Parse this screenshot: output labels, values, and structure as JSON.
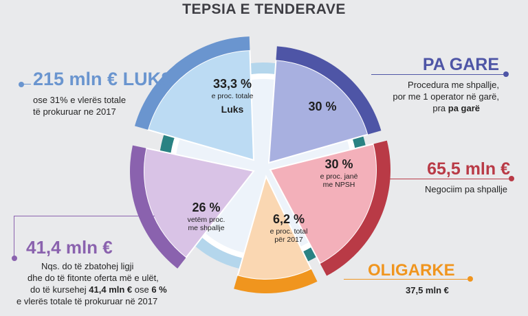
{
  "title": "TEPSIA E TENDERAVE",
  "colors": {
    "luks": "#6a95cf",
    "pa_gare": "#4e55a6",
    "negociim": "#b93a46",
    "oligarke": "#f0951e",
    "shpallje": "#8a62ae",
    "teal_ring": "#2a8283",
    "lightblue_ring": "#b4d6ec"
  },
  "chart_data": {
    "type": "pie",
    "slices": [
      {
        "key": "luks",
        "value_label": "33,3 %",
        "sub_label": "e proc. totale",
        "extra_label": "Luks"
      },
      {
        "key": "pa_gare",
        "value_label": "30 %",
        "sub_label": "",
        "extra_label": ""
      },
      {
        "key": "negociim",
        "value_label": "30 %",
        "sub_label": "e proc. janë\nme NPSH",
        "extra_label": ""
      },
      {
        "key": "oligarke",
        "value_label": "6,2 %",
        "sub_label": "e proc. total\npër 2017",
        "extra_label": ""
      },
      {
        "key": "shpallje",
        "value_label": "26 %",
        "sub_label": "vetëm proc.\nme shpallje",
        "extra_label": ""
      }
    ]
  },
  "annotations": {
    "luks": {
      "headline": "215 mln € LUKS",
      "lines": [
        "ose 31% e vlerës totale",
        "të prokuruar ne 2017"
      ]
    },
    "pa_gare": {
      "headline": "PA GARE",
      "line1": "Procedura me shpallje,",
      "line2": "por me 1 operator në garë,",
      "line3_pre": "pra ",
      "line3_bold": "pa garë"
    },
    "negociim": {
      "headline": "65,5 mln €",
      "line1": "Negociim pa shpallje"
    },
    "oligarke": {
      "headline": "OLIGARKE",
      "line1": "37,5 mln €"
    },
    "shpallje": {
      "headline": "41,4 mln €",
      "line1": "Nqs. do të zbatohej ligji",
      "line2": "dhe do të fitonte oferta më e ulët,",
      "line3_pre": "do të kursehej ",
      "line3_bold1": "41,4 mln €",
      "line3_mid": " ose ",
      "line3_bold2": "6 %",
      "line4": "e vlerës totale të prokuruar në 2017"
    }
  }
}
